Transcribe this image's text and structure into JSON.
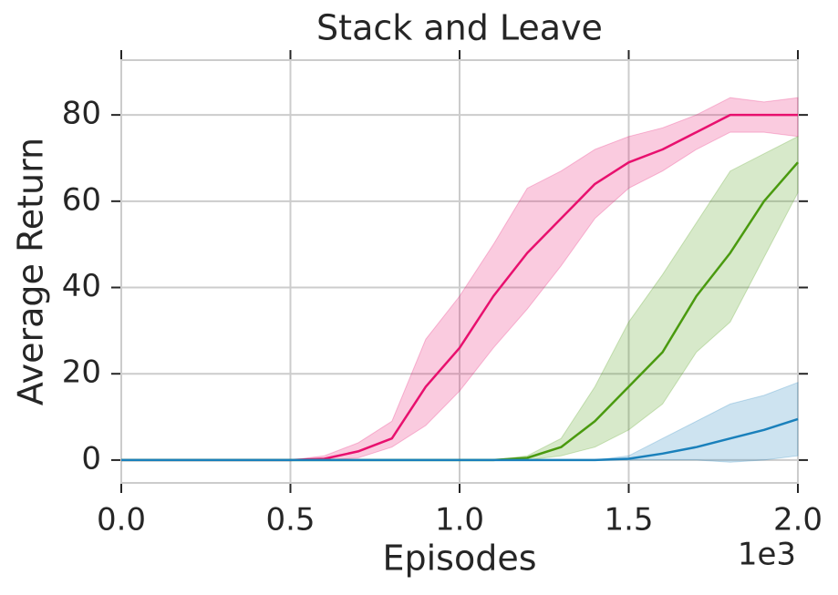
{
  "chart_data": {
    "type": "line",
    "title": "Stack and Leave",
    "xlabel": "Episodes",
    "ylabel": "Average Return",
    "x_offset_label": "1e3",
    "x": [
      0,
      0.1,
      0.2,
      0.3,
      0.4,
      0.5,
      0.6,
      0.7,
      0.8,
      0.9,
      1.0,
      1.1,
      1.2,
      1.3,
      1.4,
      1.5,
      1.6,
      1.7,
      1.8,
      1.9,
      2.0
    ],
    "xlim": [
      0,
      2.0
    ],
    "xticks": [
      {
        "value": 0,
        "label": "0.0"
      },
      {
        "value": 0.5,
        "label": "0.5"
      },
      {
        "value": 1.0,
        "label": "1.0"
      },
      {
        "value": 1.5,
        "label": "1.5"
      },
      {
        "value": 2.0,
        "label": "2.0"
      }
    ],
    "ylim": [
      -5.3,
      92.7
    ],
    "yticks": [
      0,
      20,
      40,
      60,
      80
    ],
    "grid": true,
    "series": [
      {
        "color": "#e8106e",
        "values": [
          0,
          0,
          0,
          0,
          0,
          0,
          0.3,
          2,
          5,
          17,
          26,
          38,
          48,
          56,
          64,
          69,
          72,
          76,
          80,
          80,
          80
        ],
        "upper": [
          0,
          0,
          0,
          0,
          0,
          0,
          1,
          4,
          9,
          28,
          38,
          50,
          63,
          67,
          72,
          75,
          77,
          80,
          84,
          83,
          84
        ],
        "lower": [
          0,
          0,
          0,
          0,
          0,
          0,
          0,
          0.5,
          3,
          8,
          16,
          26,
          35,
          45,
          56,
          63,
          67,
          72,
          76,
          76,
          75
        ]
      },
      {
        "color": "#4a9a0f",
        "values": [
          0,
          0,
          0,
          0,
          0,
          0,
          0,
          0,
          0,
          0,
          0,
          0,
          0.5,
          3,
          9,
          17,
          25,
          38,
          48,
          60,
          69
        ],
        "upper": [
          0,
          0,
          0,
          0,
          0,
          0,
          0,
          0,
          0,
          0,
          0,
          0,
          1,
          5,
          17,
          32,
          43,
          55,
          67,
          71,
          75
        ],
        "lower": [
          0,
          0,
          0,
          0,
          0,
          0,
          0,
          0,
          0,
          0,
          0,
          0,
          0,
          1,
          3,
          7,
          13,
          25,
          32,
          47,
          62
        ]
      },
      {
        "color": "#1a80bb",
        "values": [
          0,
          0,
          0,
          0,
          0,
          0,
          0,
          0,
          0,
          0,
          0,
          0,
          0,
          0,
          0,
          0.3,
          1.5,
          3,
          5,
          7,
          9.5
        ],
        "upper": [
          0,
          0,
          0,
          0,
          0,
          0,
          0,
          0,
          0,
          0,
          0,
          0,
          0,
          0,
          0,
          1,
          5,
          9,
          13,
          15,
          18
        ],
        "lower": [
          0,
          0,
          0,
          0,
          0,
          0,
          0,
          0,
          0,
          0,
          0,
          0,
          0,
          0,
          0,
          0,
          0,
          0,
          -0.5,
          0,
          1
        ]
      }
    ]
  }
}
